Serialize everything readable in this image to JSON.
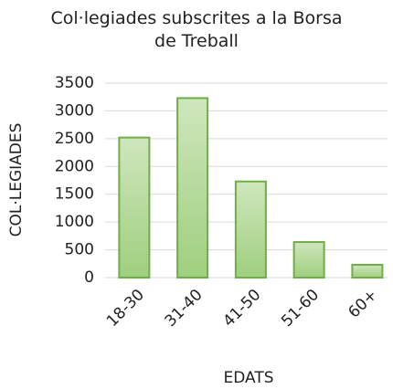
{
  "chart_data": {
    "type": "bar",
    "title": "Col·legiades subscrites a la Borsa de Treball",
    "x_label": "EDATS",
    "y_label": "COL·LEGIADES",
    "categories": [
      "18-30",
      "31-40",
      "41-50",
      "51-60",
      "60+"
    ],
    "values": [
      2520,
      3230,
      1730,
      640,
      230
    ],
    "color": "#b4d99a",
    "edge_color": "#70ad47",
    "ylim": [
      0,
      3500
    ],
    "yticks": [
      0,
      500,
      1000,
      1500,
      2000,
      2500,
      3000,
      3500
    ],
    "grid": true
  }
}
